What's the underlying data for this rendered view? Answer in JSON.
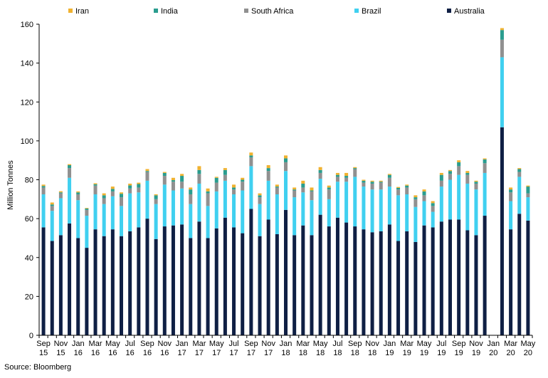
{
  "chart_data": {
    "type": "bar",
    "stacked": true,
    "ylabel": "Million Tonnes",
    "ylim": [
      0,
      160
    ],
    "yticks": [
      0,
      20,
      40,
      60,
      80,
      100,
      120,
      140,
      160
    ],
    "legend_position": "top",
    "x": [
      "Sep 15",
      "Oct 15",
      "Nov 15",
      "Dec 15",
      "Jan 16",
      "Feb 16",
      "Mar 16",
      "Apr 16",
      "May 16",
      "Jun 16",
      "Jul 16",
      "Aug 16",
      "Sep 16",
      "Oct 16",
      "Nov 16",
      "Dec 16",
      "Jan 17",
      "Feb 17",
      "Mar 17",
      "Apr 17",
      "May 17",
      "Jun 17",
      "Jul 17",
      "Aug 17",
      "Sep 17",
      "Oct 17",
      "Nov 17",
      "Dec 17",
      "Jan 18",
      "Feb 18",
      "Mar 18",
      "Apr 18",
      "May 18",
      "Jun 18",
      "Jul 18",
      "Aug 18",
      "Sep 18",
      "Oct 18",
      "Nov 18",
      "Dec 18",
      "Jan 19",
      "Feb 19",
      "Mar 19",
      "Apr 19",
      "May 19",
      "Jun 19",
      "Jul 19",
      "Aug 19",
      "Sep 19",
      "Oct 19",
      "Nov 19",
      "Dec 19",
      "Jan 20",
      "Feb 20",
      "Mar 20",
      "Apr 20",
      "May 20"
    ],
    "tick_labels": [
      {
        "index": 0,
        "month": "Sep",
        "year": "15"
      },
      {
        "index": 2,
        "month": "Nov",
        "year": "15"
      },
      {
        "index": 4,
        "month": "Jan",
        "year": "16"
      },
      {
        "index": 6,
        "month": "Mar",
        "year": "16"
      },
      {
        "index": 8,
        "month": "May",
        "year": "16"
      },
      {
        "index": 10,
        "month": "Jul",
        "year": "16"
      },
      {
        "index": 12,
        "month": "Sep",
        "year": "16"
      },
      {
        "index": 14,
        "month": "Nov",
        "year": "16"
      },
      {
        "index": 16,
        "month": "Jan",
        "year": "17"
      },
      {
        "index": 18,
        "month": "Mar",
        "year": "17"
      },
      {
        "index": 20,
        "month": "May",
        "year": "17"
      },
      {
        "index": 22,
        "month": "Jul",
        "year": "17"
      },
      {
        "index": 24,
        "month": "Sep",
        "year": "17"
      },
      {
        "index": 26,
        "month": "Nov",
        "year": "17"
      },
      {
        "index": 28,
        "month": "Jan",
        "year": "18"
      },
      {
        "index": 30,
        "month": "Mar",
        "year": "18"
      },
      {
        "index": 32,
        "month": "May",
        "year": "18"
      },
      {
        "index": 34,
        "month": "Jul",
        "year": "18"
      },
      {
        "index": 36,
        "month": "Sep",
        "year": "18"
      },
      {
        "index": 38,
        "month": "Nov",
        "year": "18"
      },
      {
        "index": 40,
        "month": "Jan",
        "year": "19"
      },
      {
        "index": 42,
        "month": "Mar",
        "year": "19"
      },
      {
        "index": 44,
        "month": "May",
        "year": "19"
      },
      {
        "index": 46,
        "month": "Jul",
        "year": "19"
      },
      {
        "index": 48,
        "month": "Sep",
        "year": "19"
      },
      {
        "index": 50,
        "month": "Nov",
        "year": "19"
      },
      {
        "index": 52,
        "month": "Jan",
        "year": "20"
      },
      {
        "index": 54,
        "month": "Mar",
        "year": "20"
      },
      {
        "index": 56,
        "month": "May",
        "year": "20"
      }
    ],
    "series": [
      {
        "name": "Australia",
        "color": "#0f1f44",
        "values": [
          55.5,
          48.5,
          51.5,
          57.5,
          50,
          45,
          54.5,
          51,
          54.5,
          51,
          53.5,
          55.5,
          60,
          49.5,
          56,
          56.5,
          57,
          50,
          58.5,
          50,
          55,
          60.5,
          55.5,
          52.5,
          65,
          51,
          59.5,
          52,
          64.5,
          51.5,
          56.5,
          51.5,
          62,
          56,
          60.5,
          58,
          56,
          54.5,
          53,
          53.5,
          57,
          48.5,
          53.5,
          48,
          56.5,
          55.5,
          58.5,
          59.5,
          59.5,
          54,
          51.5,
          61.5,
          null,
          107,
          54.5,
          62.5,
          59
        ]
      },
      {
        "name": "Brazil",
        "color": "#40d0f0",
        "values": [
          17,
          15.5,
          19,
          23.5,
          19.5,
          16.5,
          18,
          16.5,
          17,
          15.5,
          19.5,
          18,
          19.5,
          18,
          21.5,
          18,
          18.5,
          17.5,
          19.5,
          16.5,
          19,
          19,
          17,
          22,
          22,
          16.5,
          20,
          20.5,
          20,
          19.5,
          17,
          18,
          18.5,
          14,
          18.5,
          21,
          25.5,
          22,
          22,
          21.5,
          19.5,
          23.5,
          19,
          18,
          12.5,
          8,
          18,
          20.5,
          23,
          24,
          23.5,
          22,
          null,
          36,
          14.5,
          19,
          12
        ]
      },
      {
        "name": "South Africa",
        "color": "#909090",
        "values": [
          3.5,
          2.5,
          2.5,
          5,
          3,
          3,
          4.5,
          3,
          2.5,
          4.5,
          2.5,
          2.5,
          4.5,
          2.5,
          4.5,
          4.5,
          3.5,
          5,
          5,
          6.5,
          4.5,
          3,
          2.5,
          4.5,
          4.5,
          3.5,
          5,
          3.5,
          4.5,
          3.5,
          2.5,
          4.5,
          3,
          5,
          2.5,
          2,
          4,
          2,
          3,
          3.5,
          4.5,
          3,
          3.5,
          4,
          3,
          3,
          3,
          3,
          4.5,
          4.5,
          3,
          5,
          null,
          9,
          4.5,
          2.5,
          2
        ]
      },
      {
        "name": "India",
        "color": "#2a9d8f",
        "values": [
          0.8,
          0.8,
          0.5,
          1.5,
          1,
          0.7,
          0.7,
          1.5,
          1.3,
          1.8,
          1.6,
          1.8,
          0.5,
          2,
          1.5,
          0.8,
          3,
          2.5,
          2,
          1,
          2.5,
          2.5,
          1,
          1,
          1,
          1,
          1.5,
          0.5,
          2,
          0.5,
          2,
          0.5,
          1.5,
          1,
          1,
          1,
          0.5,
          1,
          1,
          0.5,
          1.5,
          0.8,
          1,
          1,
          2,
          1.5,
          3,
          1.5,
          2,
          1,
          1,
          2,
          null,
          5,
          1.5,
          1.5,
          3.5
        ]
      },
      {
        "name": "Iran",
        "color": "#f0b230",
        "values": [
          0.7,
          1,
          0.6,
          0.5,
          0.5,
          0.3,
          0.5,
          1,
          1.2,
          0.7,
          0.9,
          0.7,
          1,
          0.5,
          0.5,
          1.2,
          1,
          1,
          2,
          1.5,
          0.5,
          1,
          1.5,
          1,
          1.5,
          1,
          1.5,
          1,
          1.5,
          1,
          1.5,
          1.5,
          1.5,
          1,
          1,
          1.5,
          0.5,
          0.5,
          0.5,
          0.5,
          0.5,
          0.5,
          0.5,
          1,
          1,
          1,
          1,
          0.5,
          1,
          1,
          0.5,
          0.5,
          null,
          1,
          1,
          0.5,
          0.5
        ]
      }
    ]
  },
  "source_text": "Source: Bloomberg"
}
